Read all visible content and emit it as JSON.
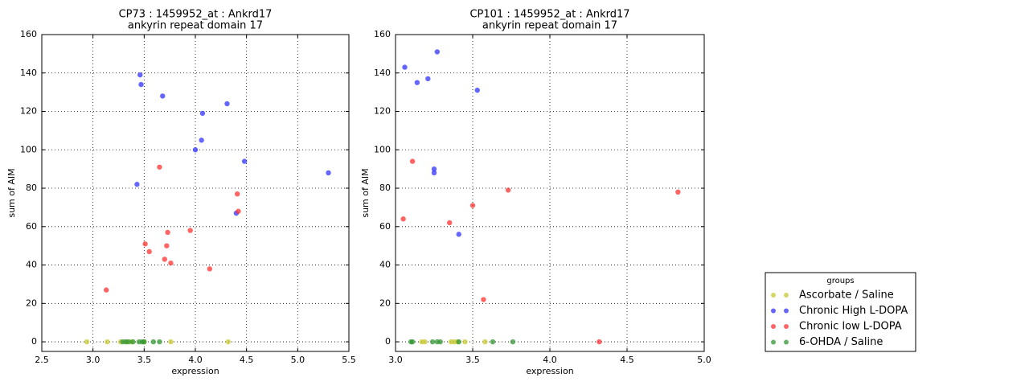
{
  "chart_data": [
    {
      "type": "scatter",
      "title": "CP73 : 1459952_at : Ankrd17",
      "subtitle": "ankyrin repeat domain 17",
      "x_label": "expression",
      "y_label": "sum of AIM",
      "xlim": [
        2.5,
        5.5
      ],
      "ylim": [
        -5,
        160
      ],
      "xticks": [
        2.5,
        {
          "value": 3,
          "label": "3.0"
        },
        3.5,
        {
          "value": 4,
          "label": "4.0"
        },
        4.5,
        {
          "value": 5,
          "label": "5.0"
        },
        5.5
      ],
      "yticks": [
        0,
        20,
        40,
        60,
        80,
        100,
        120,
        140,
        160
      ],
      "grid": true,
      "legend_title": "groups",
      "series": [
        {
          "name": "Ascorbate / Saline",
          "color": "#c8c832",
          "x": [
            2.94,
            3.14,
            3.27,
            3.33,
            3.38,
            3.5,
            3.76,
            4.32
          ],
          "values": [
            0,
            0,
            0,
            0,
            0,
            0,
            0,
            0
          ]
        },
        {
          "name": "Chronic High L-DOPA",
          "color": "#3232ff",
          "x": [
            3.46,
            3.47,
            3.68,
            4.07,
            4.31,
            4.06,
            4.0,
            4.48,
            5.3,
            3.43,
            4.4
          ],
          "values": [
            139,
            134,
            128,
            119,
            124,
            105,
            100,
            94,
            88,
            82,
            67
          ]
        },
        {
          "name": "Chronic low L-DOPA",
          "color": "#ff3232",
          "x": [
            3.65,
            4.41,
            4.42,
            3.95,
            3.73,
            3.51,
            3.72,
            3.55,
            3.7,
            3.76,
            4.14,
            3.13
          ],
          "values": [
            91,
            77,
            68,
            58,
            57,
            51,
            50,
            47,
            43,
            41,
            38,
            27
          ]
        },
        {
          "name": "6-OHDA / Saline",
          "color": "#329632",
          "x": [
            3.29,
            3.32,
            3.35,
            3.39,
            3.45,
            3.48,
            3.5,
            3.59,
            3.65
          ],
          "values": [
            0,
            0,
            0,
            0,
            0,
            0,
            0,
            0,
            0
          ]
        }
      ]
    },
    {
      "type": "scatter",
      "title": "CP101 : 1459952_at : Ankrd17",
      "subtitle": "ankyrin repeat domain 17",
      "x_label": "expression",
      "y_label": "sum of AIM",
      "xlim": [
        3,
        5
      ],
      "ylim": [
        -5,
        160
      ],
      "xticks": [
        {
          "value": 3,
          "label": "3.0"
        },
        3.5,
        {
          "value": 4,
          "label": "4.0"
        },
        4.5,
        {
          "value": 5,
          "label": "5.0"
        }
      ],
      "yticks": [
        0,
        20,
        40,
        60,
        80,
        100,
        120,
        140,
        160
      ],
      "grid": true,
      "series": [
        {
          "color": "#c8c832",
          "x": [
            3.17,
            3.19,
            3.36,
            3.38,
            3.4,
            3.45,
            3.58
          ],
          "values": [
            0,
            0,
            0,
            0,
            0,
            0,
            0
          ]
        },
        {
          "color": "#3232ff",
          "x": [
            3.06,
            3.27,
            3.14,
            3.21,
            3.53,
            3.25,
            3.25,
            3.41
          ],
          "values": [
            143,
            151,
            135,
            137,
            131,
            90,
            88,
            56
          ]
        },
        {
          "color": "#ff3232",
          "x": [
            3.11,
            3.05,
            3.73,
            4.83,
            3.5,
            3.35,
            3.57,
            4.32
          ],
          "values": [
            94,
            64,
            79,
            78,
            71,
            62,
            22,
            0
          ]
        },
        {
          "color": "#329632",
          "x": [
            3.1,
            3.11,
            3.24,
            3.27,
            3.29,
            3.41,
            3.63,
            3.76
          ],
          "values": [
            0,
            0,
            0,
            0,
            0,
            0,
            0,
            0
          ]
        }
      ]
    }
  ]
}
